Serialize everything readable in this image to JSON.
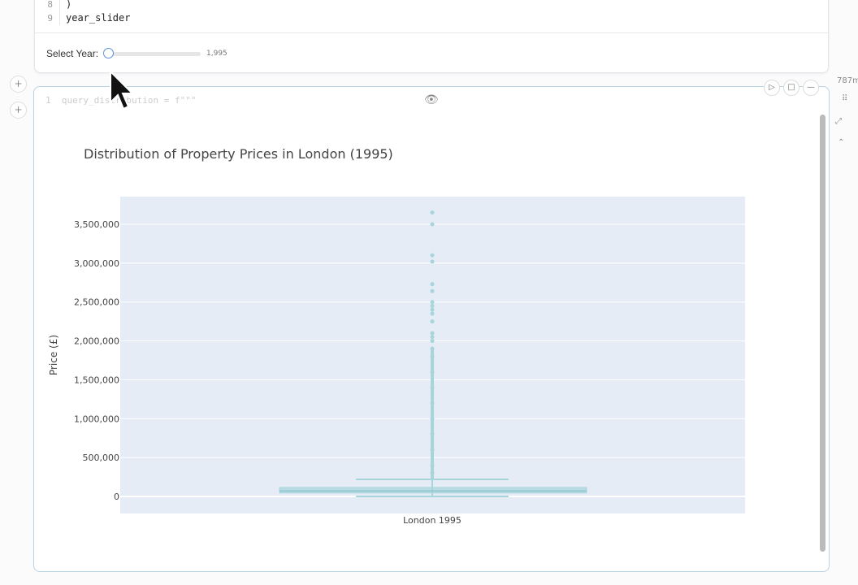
{
  "cell1": {
    "lines": [
      {
        "n": "8",
        "code": ")"
      },
      {
        "n": "9",
        "code": "year_slider"
      }
    ],
    "slider_label": "Select Year:",
    "slider_value": "1,995",
    "slider_fraction": 0
  },
  "cell2": {
    "code_line_no": "1",
    "code": "query_distribution = f\"\"\"",
    "run_label": "▷",
    "stop_label": "□",
    "collapse_label": "—",
    "eye_icon": "eye-icon"
  },
  "side": {
    "memory": "787m"
  },
  "add_label": "+",
  "chart_data": {
    "type": "box",
    "title": "Distribution of Property Prices in London (1995)",
    "xlabel": "",
    "ylabel": "Price (£)",
    "categories": [
      "London 1995"
    ],
    "ylim": [
      -100000,
      3850000
    ],
    "yticks": [
      0,
      500000,
      1000000,
      1500000,
      2000000,
      2500000,
      3000000,
      3500000
    ],
    "ytick_labels": [
      "0",
      "500,000",
      "1,000,000",
      "1,500,000",
      "2,000,000",
      "2,500,000",
      "3,000,000",
      "3,500,000"
    ],
    "grid": true,
    "box": {
      "lower_whisker": 0,
      "q1": 45000,
      "median": 70000,
      "q3": 115000,
      "upper_whisker": 220000
    },
    "outliers": [
      3650000,
      3500000,
      3100000,
      3020000,
      2730000,
      2640000,
      2500000,
      2450000,
      2400000,
      2350000,
      2250000,
      2100000,
      2050000,
      2000000,
      1900000,
      1800000,
      1600000,
      1400000,
      1200000,
      1000000,
      800000,
      600000,
      400000,
      300000
    ],
    "color": "#a8d4dc"
  }
}
